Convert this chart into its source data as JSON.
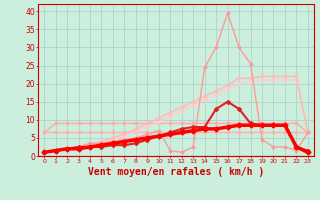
{
  "x": [
    0,
    1,
    2,
    3,
    4,
    5,
    6,
    7,
    8,
    9,
    10,
    11,
    12,
    13,
    14,
    15,
    16,
    17,
    18,
    19,
    20,
    21,
    22,
    23
  ],
  "lines": [
    {
      "y": [
        6.5,
        6.5,
        6.5,
        6.5,
        6.5,
        6.5,
        6.5,
        6.5,
        6.5,
        6.5,
        6.5,
        6.5,
        6.5,
        6.5,
        6.5,
        6.5,
        6.5,
        6.5,
        6.5,
        6.5,
        6.5,
        6.5,
        6.5,
        6.5
      ],
      "color": "#ffb0b0",
      "lw": 1.0,
      "marker": "D",
      "ms": 1.5
    },
    {
      "y": [
        6.5,
        9.0,
        9.0,
        9.0,
        9.0,
        9.0,
        9.0,
        9.0,
        9.0,
        9.0,
        9.0,
        9.0,
        9.0,
        9.0,
        9.0,
        9.0,
        9.0,
        9.0,
        9.0,
        9.0,
        9.0,
        9.0,
        9.0,
        6.5
      ],
      "color": "#ffaaaa",
      "lw": 1.0,
      "marker": "D",
      "ms": 1.5
    },
    {
      "y": [
        1.0,
        1.5,
        2.0,
        2.5,
        3.0,
        3.5,
        4.5,
        5.5,
        7.0,
        8.0,
        9.5,
        11.0,
        12.5,
        14.0,
        15.5,
        17.0,
        18.5,
        20.0,
        20.5,
        21.0,
        21.0,
        21.0,
        21.0,
        6.5
      ],
      "color": "#ffcccc",
      "lw": 1.0,
      "marker": "D",
      "ms": 1.5
    },
    {
      "y": [
        1.0,
        1.5,
        2.0,
        2.5,
        3.0,
        4.0,
        5.0,
        6.0,
        7.5,
        9.0,
        10.5,
        12.0,
        13.5,
        15.0,
        16.5,
        18.0,
        19.5,
        21.5,
        21.5,
        22.0,
        22.0,
        22.0,
        22.0,
        6.5
      ],
      "color": "#ffbbbb",
      "lw": 1.2,
      "marker": "D",
      "ms": 1.5
    },
    {
      "y": [
        1.0,
        1.5,
        2.0,
        2.5,
        3.5,
        3.5,
        4.0,
        4.5,
        5.0,
        6.0,
        7.0,
        1.5,
        1.0,
        2.5,
        24.5,
        30.0,
        39.5,
        30.0,
        25.5,
        4.5,
        2.5,
        2.5,
        1.5,
        6.5
      ],
      "color": "#ff9999",
      "lw": 1.0,
      "marker": "D",
      "ms": 1.5
    },
    {
      "y": [
        1.0,
        1.5,
        2.0,
        2.5,
        2.5,
        2.5,
        3.0,
        3.0,
        3.5,
        4.5,
        5.5,
        6.5,
        7.5,
        8.0,
        8.0,
        13.0,
        15.0,
        13.0,
        9.0,
        8.5,
        8.5,
        8.5,
        2.5,
        1.5
      ],
      "color": "#dd2222",
      "lw": 1.5,
      "marker": "D",
      "ms": 2.0
    },
    {
      "y": [
        1.0,
        1.5,
        2.0,
        2.0,
        2.5,
        3.0,
        3.5,
        4.0,
        4.5,
        5.0,
        5.5,
        6.0,
        6.5,
        7.0,
        7.5,
        7.5,
        8.0,
        8.5,
        8.5,
        8.5,
        8.5,
        8.5,
        2.5,
        1.0
      ],
      "color": "#ff0000",
      "lw": 2.5,
      "marker": "D",
      "ms": 2.5
    }
  ],
  "ylim": [
    0,
    42
  ],
  "yticks": [
    0,
    5,
    10,
    15,
    20,
    25,
    30,
    35,
    40
  ],
  "xlabel": "Vent moyen/en rafales ( km/h )",
  "bg_color": "#cceedd",
  "grid_color": "#aacccc",
  "axis_color": "#cc0000",
  "xlabel_color": "#cc0000",
  "tick_color": "#cc0000",
  "xlabel_fontsize": 7
}
